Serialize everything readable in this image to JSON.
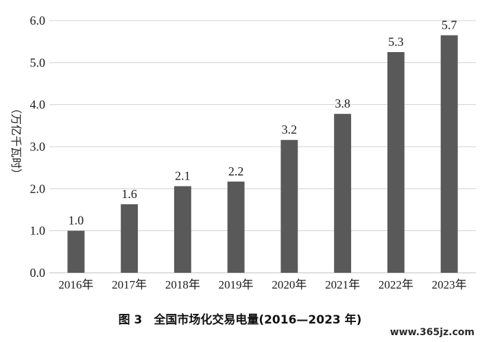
{
  "chart_data": {
    "type": "bar",
    "title": "",
    "xlabel": "",
    "ylabel": "（万亿千瓦时）",
    "ylim": [
      0,
      6
    ],
    "yticks": [
      "0.0",
      "1.0",
      "2.0",
      "3.0",
      "4.0",
      "5.0",
      "6.0"
    ],
    "grid": true,
    "categories": [
      "2016年",
      "2017年",
      "2018年",
      "2019年",
      "2020年",
      "2021年",
      "2022年",
      "2023年"
    ],
    "values": [
      1.0,
      1.63,
      2.06,
      2.17,
      3.16,
      3.78,
      5.25,
      5.65
    ],
    "data_labels": [
      "1.0",
      "1.6",
      "2.1",
      "2.2",
      "3.2",
      "3.8",
      "5.3",
      "5.7"
    ],
    "bar_color": "#595959"
  },
  "caption": "图 3　全国市场化交易电量(2016—2023 年)",
  "watermark": "www.365jz.com"
}
